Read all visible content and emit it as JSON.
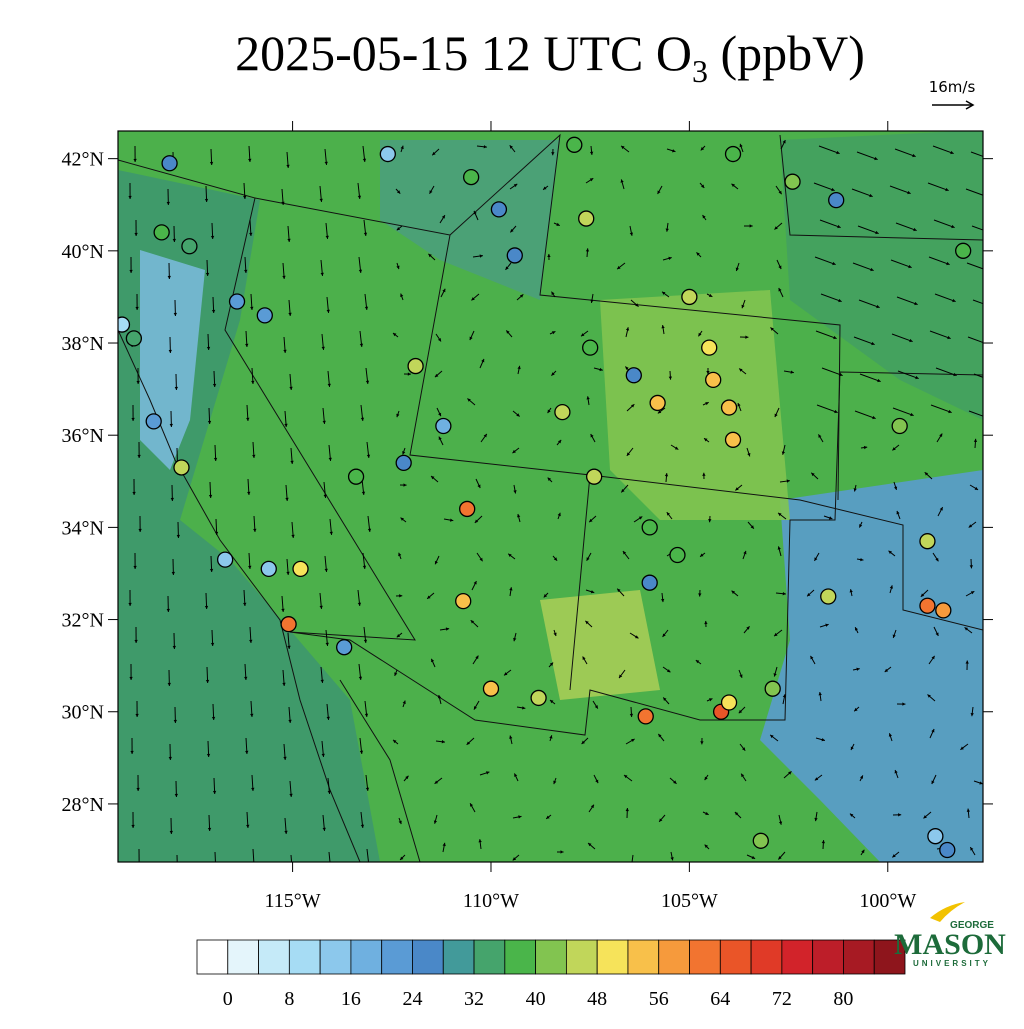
{
  "title": {
    "text": "2025-05-15 12 UTC O",
    "subscript": "3",
    "suffix": " (ppbV)"
  },
  "reference_vector": "16m/s",
  "map": {
    "xlim": [
      -119.4,
      -97.6
    ],
    "ylim": [
      26.74,
      42.6
    ],
    "xticks": [
      {
        "value": -115,
        "label": "115°W"
      },
      {
        "value": -110,
        "label": "110°W"
      },
      {
        "value": -105,
        "label": "105°W"
      },
      {
        "value": -100,
        "label": "100°W"
      }
    ],
    "yticks": [
      {
        "value": 28,
        "label": "28°N"
      },
      {
        "value": 30,
        "label": "30°N"
      },
      {
        "value": 32,
        "label": "32°N"
      },
      {
        "value": 34,
        "label": "34°N"
      },
      {
        "value": 36,
        "label": "36°N"
      },
      {
        "value": 38,
        "label": "38°N"
      },
      {
        "value": 40,
        "label": "40°N"
      },
      {
        "value": 42,
        "label": "42°N"
      }
    ]
  },
  "stations": {
    "lon": [
      -118.1,
      -112.6,
      -110.5,
      -109.8,
      -107.9,
      -103.9,
      -102.4,
      -101.3,
      -98.1,
      -118.3,
      -117.6,
      -109.4,
      -107.6,
      -105.0,
      -104.5,
      -104.4,
      -104.0,
      -103.9,
      -105.8,
      -108.2,
      -107.4,
      -110.6,
      -110.7,
      -110.0,
      -108.8,
      -115.1,
      -114.8,
      -117.8,
      -106.1,
      -104.2,
      -104.0,
      -99.0,
      -98.6,
      -99.0,
      -99.7,
      -101.5,
      -102.9,
      -103.2,
      -113.7,
      -112.2,
      -111.2,
      -119.0,
      -118.5,
      -119.3,
      -116.7,
      -115.6,
      -115.7,
      -116.4,
      -111.9,
      -106.4,
      -107.5,
      -106.0,
      -105.3,
      -106.0,
      -98.5,
      -98.8,
      -113.4
    ],
    "lat": [
      41.9,
      42.1,
      41.6,
      40.9,
      42.3,
      42.1,
      41.5,
      41.1,
      40.0,
      40.4,
      40.1,
      39.9,
      40.7,
      39.0,
      37.9,
      37.2,
      36.6,
      35.9,
      36.7,
      36.5,
      35.1,
      34.4,
      32.4,
      30.5,
      30.3,
      31.9,
      33.1,
      35.3,
      29.9,
      30.0,
      30.2,
      32.3,
      32.2,
      33.7,
      36.2,
      32.5,
      30.5,
      27.2,
      31.4,
      35.4,
      36.2,
      38.1,
      36.3,
      38.4,
      33.3,
      33.1,
      38.6,
      38.9,
      37.5,
      37.3,
      37.9,
      34.0,
      33.4,
      32.8,
      27.0,
      27.3,
      35.1
    ],
    "values": [
      26,
      14,
      36,
      24,
      36,
      38,
      43,
      26,
      36,
      36,
      34,
      26,
      47,
      47,
      48,
      54,
      55,
      52,
      53,
      47,
      47,
      62,
      55,
      53,
      45,
      60,
      48,
      47,
      60,
      64,
      50,
      60,
      56,
      47,
      42,
      46,
      40,
      42,
      22,
      26,
      16,
      34,
      20,
      10,
      14,
      12,
      22,
      20,
      47,
      24,
      36,
      36,
      36,
      24,
      24,
      12,
      38
    ]
  },
  "colorbar": {
    "levels": [
      0,
      4,
      8,
      12,
      16,
      20,
      24,
      28,
      32,
      36,
      40,
      44,
      48,
      52,
      56,
      60,
      64,
      68,
      72,
      76,
      80,
      84
    ],
    "colors": [
      "#ffffff",
      "#e4f5fb",
      "#c5eaf8",
      "#a6dcf4",
      "#8cc8ec",
      "#6fb0e0",
      "#5a9bd5",
      "#4a88c8",
      "#429a9a",
      "#45a46c",
      "#4ab54a",
      "#82c450",
      "#c1d65a",
      "#f6e35a",
      "#f8c04a",
      "#f69a3c",
      "#f27430",
      "#ea5528",
      "#e03a27",
      "#d2232a",
      "#bd1e29",
      "#a71a23",
      "#8e151c"
    ],
    "ticks": [
      0,
      8,
      16,
      24,
      32,
      40,
      48,
      56,
      64,
      72,
      80
    ]
  },
  "logo": {
    "top": "GEORGE",
    "name": "MASON",
    "bottom": "UNIVERSITY"
  }
}
